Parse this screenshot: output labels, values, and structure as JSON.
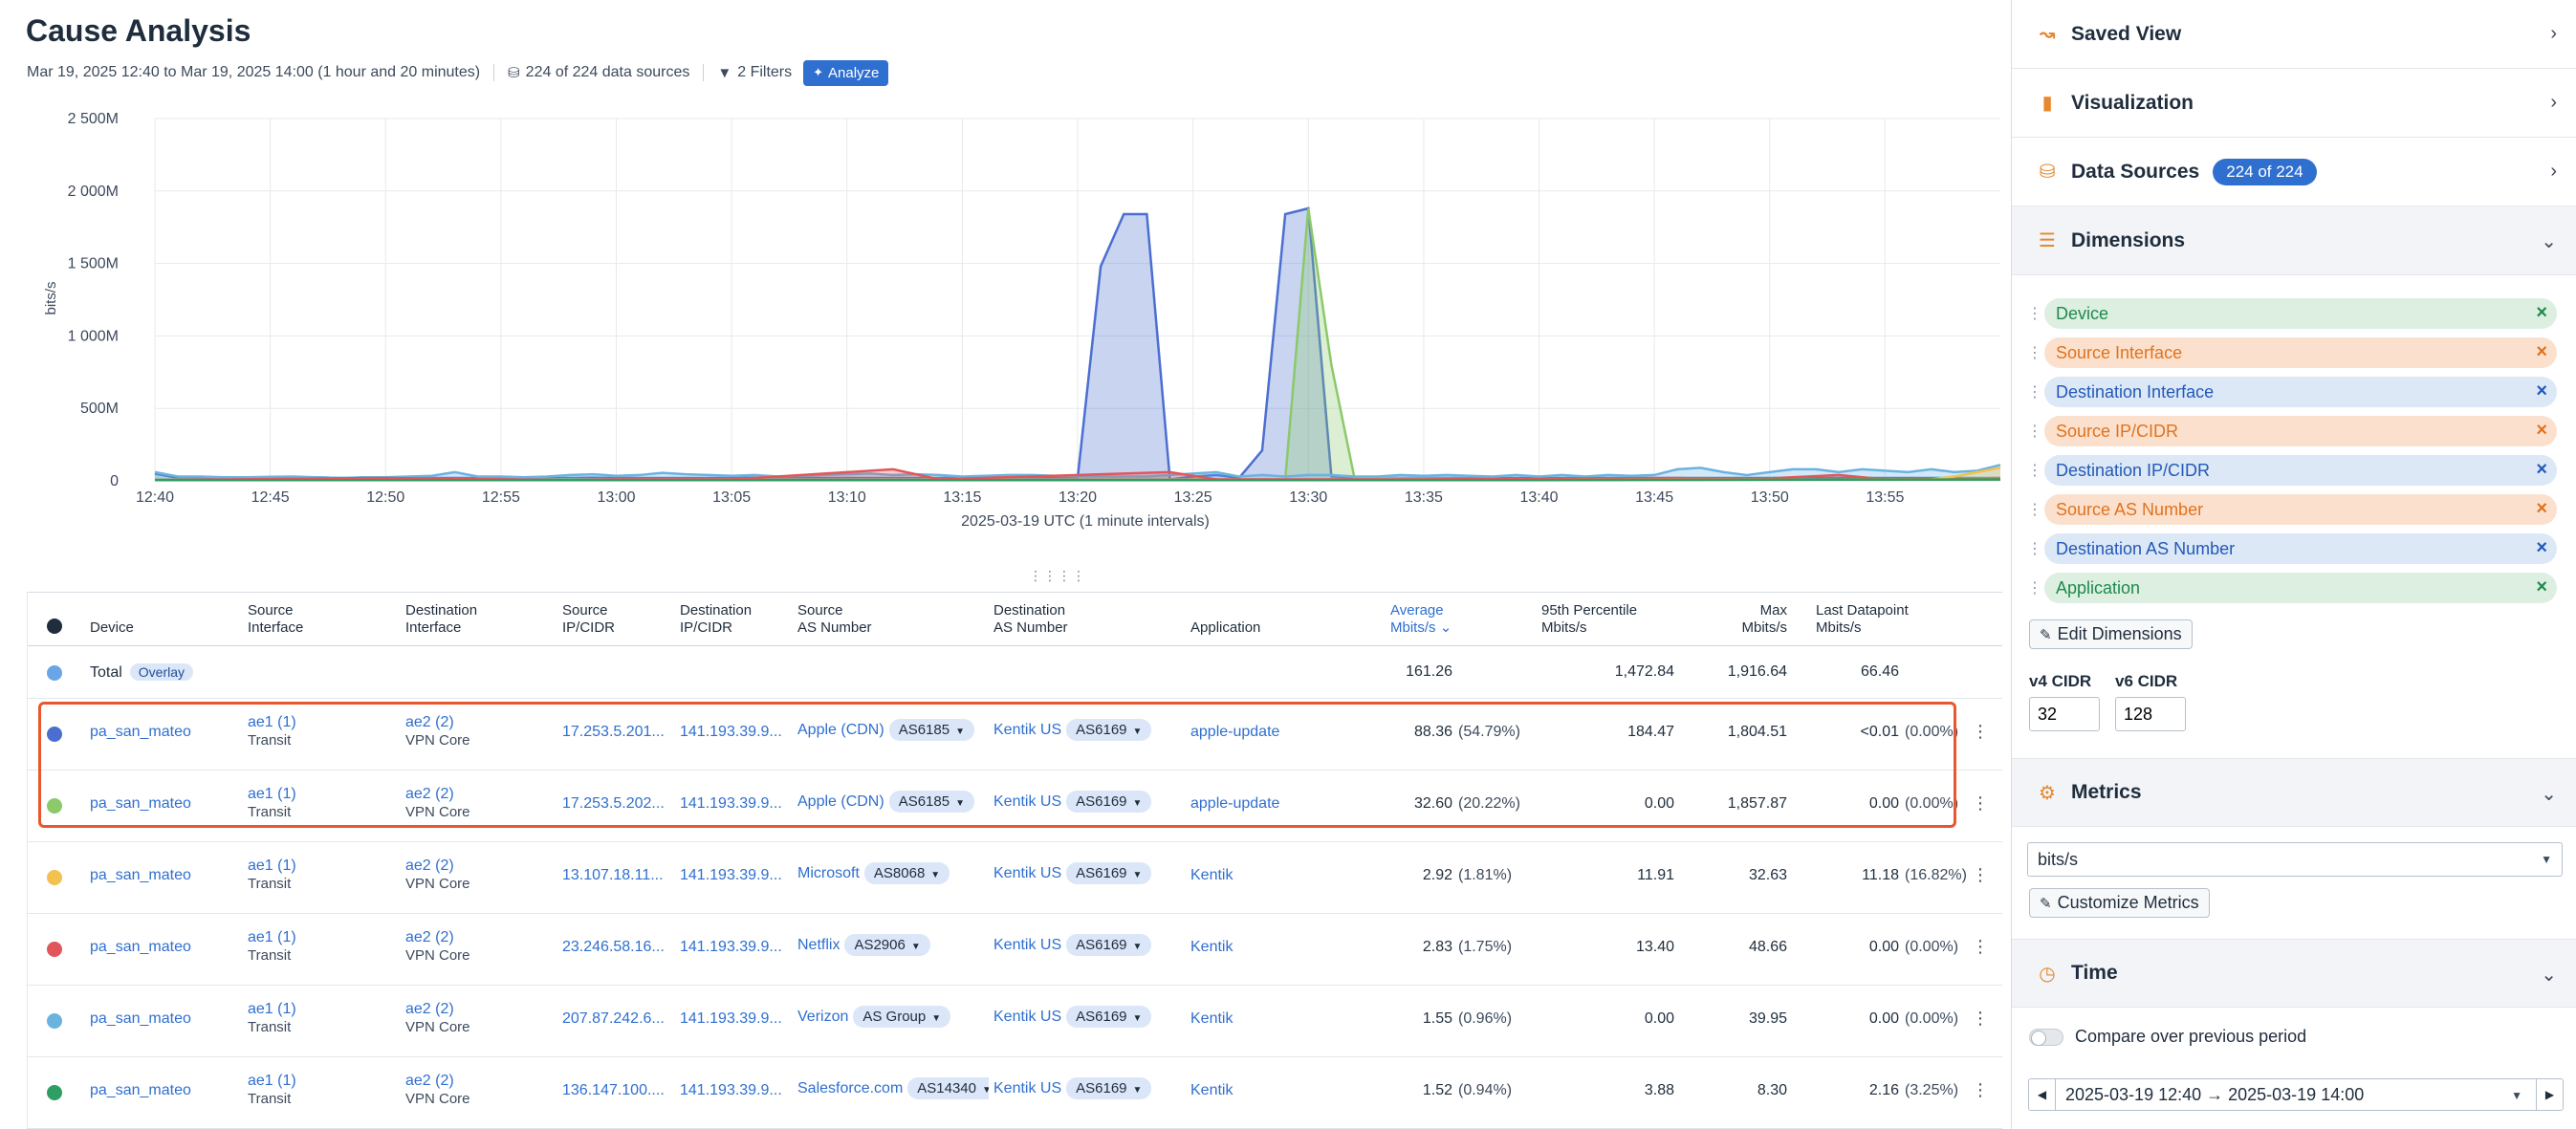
{
  "page": {
    "title": "Cause Analysis",
    "time_range": "Mar 19, 2025 12:40 to Mar 19, 2025 14:00 (1 hour and 20 minutes)",
    "data_sources": "224 of 224 data sources",
    "filters": "2 Filters",
    "analyze_label": "Analyze"
  },
  "chart_data": {
    "type": "area",
    "ylabel": "bits/s",
    "xlabel": "2025-03-19 UTC (1 minute intervals)",
    "ylim": [
      0,
      2500
    ],
    "y_ticks": [
      "2 500M",
      "2 000M",
      "1 500M",
      "1 000M",
      "500M",
      "0"
    ],
    "x_ticks": [
      "12:40",
      "12:45",
      "12:50",
      "12:55",
      "13:00",
      "13:05",
      "13:10",
      "13:15",
      "13:20",
      "13:25",
      "13:30",
      "13:35",
      "13:40",
      "13:45",
      "13:50",
      "13:55"
    ],
    "grid": true,
    "series": [
      {
        "color": "#4b6fd1",
        "points": [
          [
            0,
            50
          ],
          [
            1,
            20
          ],
          [
            2,
            25
          ],
          [
            3,
            20
          ],
          [
            4,
            22
          ],
          [
            5,
            20
          ],
          [
            6,
            25
          ],
          [
            7,
            25
          ],
          [
            8,
            20
          ],
          [
            9,
            20
          ],
          [
            10,
            20
          ],
          [
            11,
            20
          ],
          [
            12,
            20
          ],
          [
            13,
            20
          ],
          [
            14,
            20
          ],
          [
            15,
            20
          ],
          [
            16,
            20
          ],
          [
            17,
            20
          ],
          [
            18,
            20
          ],
          [
            19,
            22
          ],
          [
            20,
            20
          ],
          [
            21,
            20
          ],
          [
            22,
            20
          ],
          [
            23,
            20
          ],
          [
            24,
            20
          ],
          [
            25,
            20
          ],
          [
            26,
            22
          ],
          [
            27,
            22
          ],
          [
            28,
            20
          ],
          [
            29,
            20
          ],
          [
            30,
            20
          ],
          [
            31,
            20
          ],
          [
            32,
            20
          ],
          [
            33,
            20
          ],
          [
            34,
            20
          ],
          [
            35,
            22
          ],
          [
            36,
            20
          ],
          [
            37,
            20
          ],
          [
            38,
            20
          ],
          [
            39,
            20
          ],
          [
            40,
            20
          ],
          [
            41,
            1480
          ],
          [
            42,
            1840
          ],
          [
            43,
            1840
          ],
          [
            44,
            10
          ],
          [
            45,
            30
          ],
          [
            46,
            40
          ],
          [
            47,
            20
          ],
          [
            48,
            210
          ],
          [
            49,
            1840
          ],
          [
            50,
            1880
          ],
          [
            51,
            30
          ],
          [
            52,
            20
          ],
          [
            53,
            20
          ],
          [
            54,
            20
          ],
          [
            55,
            20
          ],
          [
            56,
            20
          ],
          [
            57,
            20
          ],
          [
            58,
            20
          ],
          [
            59,
            20
          ],
          [
            60,
            20
          ],
          [
            61,
            20
          ],
          [
            62,
            20
          ],
          [
            63,
            20
          ],
          [
            64,
            20
          ],
          [
            65,
            20
          ],
          [
            66,
            20
          ],
          [
            67,
            20
          ],
          [
            68,
            20
          ],
          [
            69,
            20
          ],
          [
            70,
            20
          ],
          [
            71,
            20
          ],
          [
            72,
            20
          ],
          [
            73,
            20
          ],
          [
            74,
            20
          ],
          [
            75,
            20
          ],
          [
            76,
            20
          ],
          [
            77,
            20
          ],
          [
            78,
            20
          ],
          [
            79,
            20
          ],
          [
            80,
            20
          ]
        ]
      },
      {
        "color": "#8bc96a",
        "points": [
          [
            0,
            10
          ],
          [
            10,
            10
          ],
          [
            20,
            10
          ],
          [
            30,
            10
          ],
          [
            40,
            10
          ],
          [
            48,
            10
          ],
          [
            49,
            10
          ],
          [
            50,
            1880
          ],
          [
            51,
            800
          ],
          [
            52,
            20
          ],
          [
            60,
            10
          ],
          [
            70,
            10
          ],
          [
            80,
            10
          ]
        ]
      },
      {
        "color": "#6ab3e0",
        "points": [
          [
            0,
            60
          ],
          [
            1,
            30
          ],
          [
            2,
            30
          ],
          [
            3,
            25
          ],
          [
            4,
            25
          ],
          [
            5,
            28
          ],
          [
            6,
            30
          ],
          [
            7,
            25
          ],
          [
            8,
            20
          ],
          [
            9,
            25
          ],
          [
            10,
            25
          ],
          [
            11,
            30
          ],
          [
            12,
            35
          ],
          [
            13,
            60
          ],
          [
            14,
            30
          ],
          [
            15,
            30
          ],
          [
            16,
            25
          ],
          [
            17,
            30
          ],
          [
            18,
            40
          ],
          [
            19,
            45
          ],
          [
            20,
            35
          ],
          [
            21,
            40
          ],
          [
            22,
            55
          ],
          [
            23,
            45
          ],
          [
            24,
            40
          ],
          [
            25,
            35
          ],
          [
            26,
            40
          ],
          [
            27,
            30
          ],
          [
            28,
            35
          ],
          [
            29,
            40
          ],
          [
            30,
            45
          ],
          [
            31,
            50
          ],
          [
            32,
            40
          ],
          [
            33,
            45
          ],
          [
            34,
            40
          ],
          [
            35,
            30
          ],
          [
            36,
            35
          ],
          [
            37,
            40
          ],
          [
            38,
            40
          ],
          [
            39,
            35
          ],
          [
            40,
            30
          ],
          [
            41,
            30
          ],
          [
            42,
            30
          ],
          [
            43,
            30
          ],
          [
            44,
            40
          ],
          [
            45,
            50
          ],
          [
            46,
            60
          ],
          [
            47,
            30
          ],
          [
            48,
            40
          ],
          [
            49,
            30
          ],
          [
            50,
            40
          ],
          [
            51,
            40
          ],
          [
            52,
            30
          ],
          [
            53,
            30
          ],
          [
            54,
            40
          ],
          [
            55,
            35
          ],
          [
            56,
            40
          ],
          [
            57,
            35
          ],
          [
            58,
            30
          ],
          [
            59,
            40
          ],
          [
            60,
            30
          ],
          [
            61,
            40
          ],
          [
            62,
            30
          ],
          [
            63,
            40
          ],
          [
            64,
            35
          ],
          [
            65,
            40
          ],
          [
            66,
            80
          ],
          [
            67,
            90
          ],
          [
            68,
            60
          ],
          [
            69,
            40
          ],
          [
            70,
            60
          ],
          [
            71,
            80
          ],
          [
            72,
            80
          ],
          [
            73,
            60
          ],
          [
            74,
            80
          ],
          [
            75,
            70
          ],
          [
            76,
            60
          ],
          [
            77,
            80
          ],
          [
            78,
            60
          ],
          [
            79,
            70
          ],
          [
            80,
            110
          ]
        ]
      },
      {
        "color": "#e15759",
        "points": [
          [
            0,
            5
          ],
          [
            10,
            20
          ],
          [
            18,
            5
          ],
          [
            20,
            10
          ],
          [
            25,
            10
          ],
          [
            32,
            80
          ],
          [
            34,
            10
          ],
          [
            44,
            60
          ],
          [
            46,
            10
          ],
          [
            55,
            10
          ],
          [
            66,
            20
          ],
          [
            69,
            10
          ],
          [
            73,
            40
          ],
          [
            75,
            10
          ],
          [
            80,
            20
          ]
        ]
      },
      {
        "color": "#f2c14e",
        "points": [
          [
            0,
            5
          ],
          [
            20,
            5
          ],
          [
            40,
            5
          ],
          [
            60,
            5
          ],
          [
            77,
            10
          ],
          [
            78,
            30
          ],
          [
            79,
            60
          ],
          [
            80,
            90
          ]
        ]
      },
      {
        "color": "#2e9e63",
        "points": [
          [
            0,
            5
          ],
          [
            20,
            5
          ],
          [
            40,
            5
          ],
          [
            60,
            5
          ],
          [
            80,
            10
          ]
        ]
      }
    ]
  },
  "table": {
    "headers": {
      "device": "Device",
      "src_if_1": "Source",
      "src_if_2": "Interface",
      "dst_if_1": "Destination",
      "dst_if_2": "Interface",
      "src_ip_1": "Source",
      "src_ip_2": "IP/CIDR",
      "dst_ip_1": "Destination",
      "dst_ip_2": "IP/CIDR",
      "src_as_1": "Source",
      "src_as_2": "AS Number",
      "dst_as_1": "Destination",
      "dst_as_2": "AS Number",
      "application": "Application",
      "avg_1": "Average",
      "avg_2": "Mbits/s",
      "p95_1": "95th Percentile",
      "p95_2": "Mbits/s",
      "max_1": "Max",
      "max_2": "Mbits/s",
      "last_1": "Last Datapoint",
      "last_2": "Mbits/s"
    },
    "total": {
      "label": "Total",
      "badge": "Overlay",
      "color": "#6aa5e8",
      "avg": "161.26",
      "p95": "1,472.84",
      "max": "1,916.64",
      "last": "66.46"
    },
    "rows": [
      {
        "color": "#4b6fd1",
        "device": "pa_san_mateo",
        "src_if": "ae1 (1)",
        "src_if_sub": "Transit",
        "dst_if": "ae2 (2)",
        "dst_if_sub": "VPN Core",
        "src_ip": "17.253.5.201...",
        "dst_ip": "141.193.39.9...",
        "src_as": "Apple (CDN)",
        "src_as_pill": "AS6185",
        "dst_as": "Kentik US",
        "dst_as_pill": "AS6169",
        "app": "apple-update",
        "avg": "88.36",
        "avg_pct": "(54.79%)",
        "p95": "184.47",
        "max": "1,804.51",
        "last": "<0.01",
        "last_pct": "(0.00%)"
      },
      {
        "color": "#8bc96a",
        "device": "pa_san_mateo",
        "src_if": "ae1 (1)",
        "src_if_sub": "Transit",
        "dst_if": "ae2 (2)",
        "dst_if_sub": "VPN Core",
        "src_ip": "17.253.5.202...",
        "dst_ip": "141.193.39.9...",
        "src_as": "Apple (CDN)",
        "src_as_pill": "AS6185",
        "dst_as": "Kentik US",
        "dst_as_pill": "AS6169",
        "app": "apple-update",
        "avg": "32.60",
        "avg_pct": "(20.22%)",
        "p95": "0.00",
        "max": "1,857.87",
        "last": "0.00",
        "last_pct": "(0.00%)"
      },
      {
        "color": "#f2c14e",
        "device": "pa_san_mateo",
        "src_if": "ae1 (1)",
        "src_if_sub": "Transit",
        "dst_if": "ae2 (2)",
        "dst_if_sub": "VPN Core",
        "src_ip": "13.107.18.11...",
        "dst_ip": "141.193.39.9...",
        "src_as": "Microsoft",
        "src_as_pill": "AS8068",
        "dst_as": "Kentik US",
        "dst_as_pill": "AS6169",
        "app": "Kentik",
        "avg": "2.92",
        "avg_pct": "(1.81%)",
        "p95": "11.91",
        "max": "32.63",
        "last": "11.18",
        "last_pct": "(16.82%)"
      },
      {
        "color": "#e15759",
        "device": "pa_san_mateo",
        "src_if": "ae1 (1)",
        "src_if_sub": "Transit",
        "dst_if": "ae2 (2)",
        "dst_if_sub": "VPN Core",
        "src_ip": "23.246.58.16...",
        "dst_ip": "141.193.39.9...",
        "src_as": "Netflix",
        "src_as_pill": "AS2906",
        "dst_as": "Kentik US",
        "dst_as_pill": "AS6169",
        "app": "Kentik",
        "avg": "2.83",
        "avg_pct": "(1.75%)",
        "p95": "13.40",
        "max": "48.66",
        "last": "0.00",
        "last_pct": "(0.00%)"
      },
      {
        "color": "#6ab3e0",
        "device": "pa_san_mateo",
        "src_if": "ae1 (1)",
        "src_if_sub": "Transit",
        "dst_if": "ae2 (2)",
        "dst_if_sub": "VPN Core",
        "src_ip": "207.87.242.6...",
        "dst_ip": "141.193.39.9...",
        "src_as": "Verizon",
        "src_as_pill": "AS Group",
        "dst_as": "Kentik US",
        "dst_as_pill": "AS6169",
        "app": "Kentik",
        "avg": "1.55",
        "avg_pct": "(0.96%)",
        "p95": "0.00",
        "max": "39.95",
        "last": "0.00",
        "last_pct": "(0.00%)"
      },
      {
        "color": "#2e9e63",
        "device": "pa_san_mateo",
        "src_if": "ae1 (1)",
        "src_if_sub": "Transit",
        "dst_if": "ae2 (2)",
        "dst_if_sub": "VPN Core",
        "src_ip": "136.147.100....",
        "dst_ip": "141.193.39.9...",
        "src_as": "Salesforce.com",
        "src_as_pill": "AS14340",
        "dst_as": "Kentik US",
        "dst_as_pill": "AS6169",
        "app": "Kentik",
        "avg": "1.52",
        "avg_pct": "(0.94%)",
        "p95": "3.88",
        "max": "8.30",
        "last": "2.16",
        "last_pct": "(3.25%)"
      }
    ]
  },
  "sidebar": {
    "saved_view": "Saved View",
    "visualization": "Visualization",
    "data_sources": "Data Sources",
    "data_sources_count": "224 of 224",
    "dimensions": "Dimensions",
    "dimension_items": [
      {
        "label": "Device",
        "tone": "green"
      },
      {
        "label": "Source Interface",
        "tone": "orange"
      },
      {
        "label": "Destination Interface",
        "tone": "blue"
      },
      {
        "label": "Source IP/CIDR",
        "tone": "orange"
      },
      {
        "label": "Destination IP/CIDR",
        "tone": "blue"
      },
      {
        "label": "Source AS Number",
        "tone": "orange"
      },
      {
        "label": "Destination AS Number",
        "tone": "blue"
      },
      {
        "label": "Application",
        "tone": "green"
      }
    ],
    "edit_dimensions": "Edit Dimensions",
    "v4_cidr_label": "v4 CIDR",
    "v4_cidr_value": "32",
    "v6_cidr_label": "v6 CIDR",
    "v6_cidr_value": "128",
    "metrics": "Metrics",
    "metric_value": "bits/s",
    "customize_metrics": "Customize Metrics",
    "time": "Time",
    "compare_label": "Compare over previous period",
    "range_value": "2025-03-19 12:40 → 2025-03-19 14:00"
  }
}
